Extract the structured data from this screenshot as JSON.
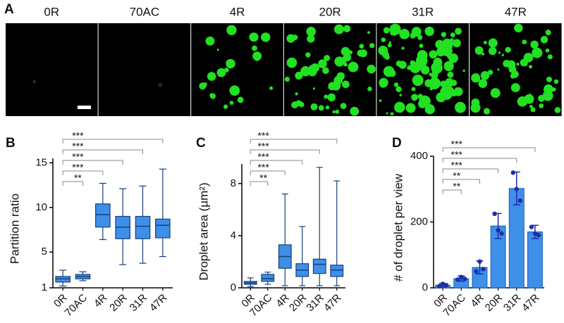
{
  "panel_a": {
    "letter": "A",
    "labels": [
      "0R",
      "70AC",
      "4R",
      "20R",
      "31R",
      "47R"
    ]
  },
  "chart_data": [
    {
      "type": "box",
      "letter": "B",
      "y_label": "Partition ratio",
      "categories": [
        "0R",
        "70AC",
        "4R",
        "20R",
        "31R",
        "47R"
      ],
      "values": [
        [
          1.2,
          1.64,
          2.0,
          2.27,
          2.97
        ],
        [
          1.8,
          2.0,
          2.27,
          2.5,
          2.8
        ],
        [
          6.4,
          7.8,
          9.2,
          10.4,
          12.7
        ],
        [
          3.6,
          6.5,
          7.8,
          9.0,
          12.1
        ],
        [
          3.75,
          6.5,
          7.9,
          9.0,
          12.4
        ],
        [
          4.5,
          6.6,
          8.0,
          8.7,
          14.3
        ]
      ],
      "color": "#3d8fe8",
      "ylim": [
        1,
        15.5
      ],
      "yticks": [
        1,
        5,
        10,
        15
      ],
      "annotations": [
        "**",
        "***",
        "***",
        "***",
        "***"
      ]
    },
    {
      "type": "box",
      "letter": "C",
      "y_label": "Droplet area (µm²)",
      "categories": [
        "0R",
        "70AC",
        "4R",
        "20R",
        "31R",
        "47R"
      ],
      "values": [
        [
          0.1,
          0.27,
          0.38,
          0.49,
          0.76
        ],
        [
          0.27,
          0.49,
          0.7,
          1.03,
          1.2
        ],
        [
          0.16,
          1.5,
          2.4,
          3.3,
          7.2
        ],
        [
          0.16,
          0.87,
          1.36,
          1.85,
          4.7
        ],
        [
          0.16,
          1.1,
          1.8,
          2.2,
          9.24
        ],
        [
          0.16,
          0.87,
          1.36,
          1.74,
          8.2
        ]
      ],
      "color": "#3d8fe8",
      "ylim": [
        0,
        9.5
      ],
      "yticks": [
        0,
        4,
        8
      ],
      "annotations": [
        "**",
        "***",
        "***",
        "***",
        "***"
      ]
    },
    {
      "type": "bar",
      "letter": "D",
      "y_label": "# of droplet per view",
      "categories": [
        "0R",
        "70AC",
        "4R",
        "20R",
        "31R",
        "47R"
      ],
      "values": [
        8,
        28,
        62,
        188,
        302,
        170
      ],
      "errors": [
        5,
        8,
        20,
        38,
        50,
        20
      ],
      "points": [
        [
          5,
          12,
          8
        ],
        [
          25,
          33,
          27
        ],
        [
          50,
          80,
          57
        ],
        [
          225,
          175,
          165
        ],
        [
          350,
          300,
          265
        ],
        [
          185,
          165,
          160
        ]
      ],
      "color": "#3d8fe8",
      "point_color": "#1c2fa8",
      "ylim": [
        0,
        400
      ],
      "yticks": [
        0,
        200,
        400
      ],
      "annotations": [
        "**",
        "**",
        "***",
        "***",
        "***"
      ]
    }
  ]
}
